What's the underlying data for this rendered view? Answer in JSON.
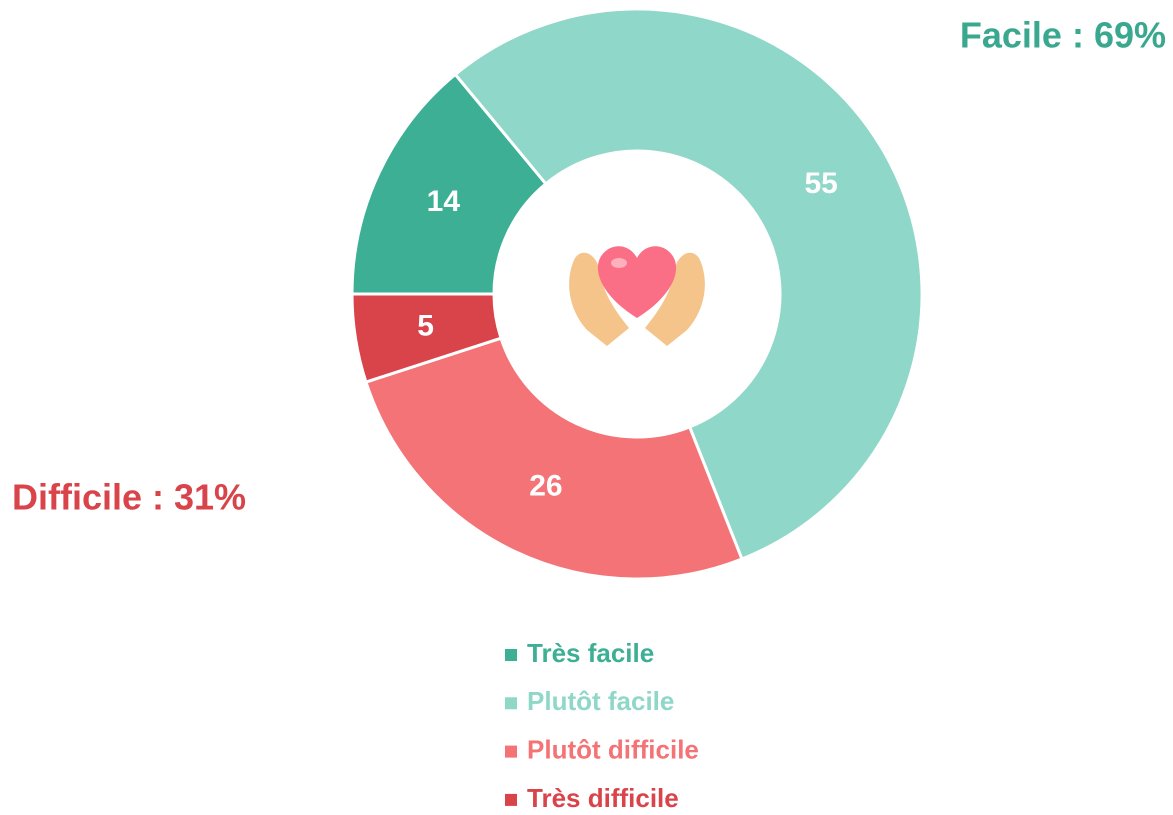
{
  "chart_data": {
    "type": "donut",
    "categories": [
      "Très facile",
      "Plutôt facile",
      "Plutôt difficile",
      "Très difficile"
    ],
    "values": [
      14,
      55,
      26,
      5
    ],
    "colors": [
      "#3daf95",
      "#8fd7c8",
      "#f37376",
      "#d9434a"
    ],
    "legend": "bottom",
    "annotations": [
      {
        "text": "Facile : 69%",
        "color": "#3aa88f"
      },
      {
        "text": "Difficile : 31%",
        "color": "#d9434a"
      }
    ]
  }
}
